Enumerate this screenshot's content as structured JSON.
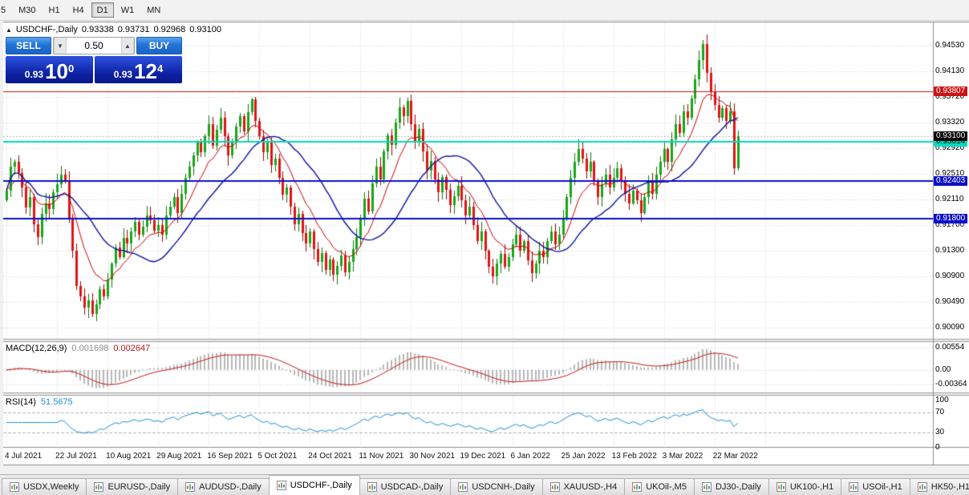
{
  "toolbar": {
    "timeframes": [
      {
        "label": "5",
        "active": false
      },
      {
        "label": "M30",
        "active": false
      },
      {
        "label": "H1",
        "active": false
      },
      {
        "label": "H4",
        "active": false
      },
      {
        "label": "D1",
        "active": true
      },
      {
        "label": "W1",
        "active": false
      },
      {
        "label": "MN",
        "active": false
      }
    ]
  },
  "chart": {
    "title": {
      "marker": "▲",
      "symbol": "USDCHF-,Daily",
      "open": "0.93338",
      "high": "0.93731",
      "low": "0.92968",
      "close": "0.93100"
    },
    "price_axis_labels": [
      "0.94530",
      "0.94130",
      "0.93720",
      "0.93320",
      "0.92920",
      "0.92510",
      "0.92110",
      "0.91700",
      "0.91300",
      "0.90900",
      "0.90490",
      "0.90090"
    ],
    "levels": [
      {
        "label": "0.93807",
        "value": 0.93807,
        "color": "#cc1414",
        "text_color": "#ffffff",
        "thickness": 1
      },
      {
        "label": "0.93014",
        "value": 0.93014,
        "color": "#00dcbe",
        "text_color": "#000000",
        "thickness": 2
      },
      {
        "label": "0.92403",
        "value": 0.92403,
        "color": "#0a10c8",
        "text_color": "#ffffff",
        "thickness": 2
      },
      {
        "label": "0.91800",
        "value": 0.918,
        "color": "#0a10c8",
        "text_color": "#ffffff",
        "thickness": 2
      }
    ],
    "current_price": {
      "label": "0.93100",
      "value": 0.931,
      "bg": "#000000",
      "text_color": "#ffffff"
    },
    "date_labels": [
      "4 Jul 2021",
      "22 Jul 2021",
      "10 Aug 2021",
      "29 Aug 2021",
      "16 Sep 2021",
      "5 Oct 2021",
      "24 Oct 2021",
      "11 Nov 2021",
      "30 Nov 2021",
      "19 Dec 2021",
      "6 Jan 2022",
      "25 Jan 2022",
      "13 Feb 2022",
      "3 Mar 2022",
      "22 Mar 2022"
    ]
  },
  "trade": {
    "sell_label": "SELL",
    "buy_label": "BUY",
    "volume": "0.50",
    "bid_small": "0.93",
    "bid_big": "10",
    "bid_sup": "0",
    "ask_small": "0.93",
    "ask_big": "12",
    "ask_sup": "4"
  },
  "macd": {
    "name": "MACD(12,26,9)",
    "value_main": "0.001698",
    "value_signal": "0.002647",
    "axis_labels": [
      {
        "text": "0.00554",
        "value": 0.00554
      },
      {
        "text": "0.00",
        "value": 0
      },
      {
        "text": "-0.00364",
        "value": -0.00364
      }
    ]
  },
  "rsi": {
    "name": "RSI(14)",
    "value": "51.5675",
    "axis_labels": [
      {
        "text": "100",
        "value": 100
      },
      {
        "text": "70",
        "value": 70
      },
      {
        "text": "30",
        "value": 30
      },
      {
        "text": "0",
        "value": 0
      }
    ],
    "levels": [
      70,
      30
    ]
  },
  "tabs": [
    {
      "label": "USDX,Weekly",
      "active": false
    },
    {
      "label": "EURUSD-,Daily",
      "active": false
    },
    {
      "label": "AUDUSD-,Daily",
      "active": false
    },
    {
      "label": "USDCHF-,Daily",
      "active": true
    },
    {
      "label": "USDCAD-,Daily",
      "active": false
    },
    {
      "label": "USDCNH-,Daily",
      "active": false
    },
    {
      "label": "XAUUSD-,H4",
      "active": false
    },
    {
      "label": "UKOil-,M5",
      "active": false
    },
    {
      "label": "DJ30-,Daily",
      "active": false
    },
    {
      "label": "UK100-,H1",
      "active": false
    },
    {
      "label": "USOil-,H1",
      "active": false
    },
    {
      "label": "HK50-,H1",
      "active": false
    }
  ],
  "chart_data": {
    "type": "candlestick",
    "symbol": "USDCHF",
    "timeframe": "Daily",
    "price_range": [
      0.8993,
      0.949
    ],
    "first_open": 0.921,
    "closes": [
      0.9225,
      0.9262,
      0.927,
      0.9252,
      0.923,
      0.9198,
      0.9215,
      0.9172,
      0.9152,
      0.9188,
      0.9205,
      0.9196,
      0.9222,
      0.9235,
      0.925,
      0.924,
      0.918,
      0.913,
      0.9075,
      0.9058,
      0.904,
      0.9052,
      0.903,
      0.9045,
      0.907,
      0.9058,
      0.9085,
      0.911,
      0.9135,
      0.912,
      0.915,
      0.9142,
      0.916,
      0.9175,
      0.9155,
      0.9168,
      0.9185,
      0.9178,
      0.9162,
      0.917,
      0.9155,
      0.9185,
      0.92,
      0.9215,
      0.919,
      0.922,
      0.9245,
      0.9262,
      0.928,
      0.93,
      0.9285,
      0.931,
      0.933,
      0.9295,
      0.932,
      0.934,
      0.931,
      0.928,
      0.93,
      0.9325,
      0.9342,
      0.9318,
      0.9348,
      0.9368,
      0.9335,
      0.931,
      0.9285,
      0.93,
      0.9265,
      0.9275,
      0.9245,
      0.9218,
      0.923,
      0.92,
      0.9172,
      0.9188,
      0.9158,
      0.9142,
      0.916,
      0.9132,
      0.9112,
      0.9126,
      0.91,
      0.9116,
      0.9092,
      0.9106,
      0.9122,
      0.9096,
      0.9112,
      0.9132,
      0.9152,
      0.9182,
      0.9212,
      0.9192,
      0.9236,
      0.9262,
      0.9242,
      0.9286,
      0.9312,
      0.9296,
      0.9332,
      0.9356,
      0.9342,
      0.9366,
      0.933,
      0.9302,
      0.9322,
      0.9286,
      0.9256,
      0.9272,
      0.9242,
      0.9222,
      0.9246,
      0.9226,
      0.9202,
      0.9216,
      0.9232,
      0.921,
      0.9185,
      0.92,
      0.917,
      0.9145,
      0.916,
      0.913,
      0.9105,
      0.909,
      0.911,
      0.9125,
      0.9105,
      0.912,
      0.914,
      0.9155,
      0.913,
      0.9145,
      0.9115,
      0.9095,
      0.911,
      0.913,
      0.912,
      0.9145,
      0.916,
      0.914,
      0.9155,
      0.918,
      0.9215,
      0.9245,
      0.927,
      0.929,
      0.9275,
      0.9255,
      0.927,
      0.924,
      0.9215,
      0.9235,
      0.925,
      0.923,
      0.9245,
      0.926,
      0.924,
      0.922,
      0.9205,
      0.9225,
      0.921,
      0.919,
      0.9215,
      0.924,
      0.922,
      0.925,
      0.927,
      0.929,
      0.927,
      0.9305,
      0.933,
      0.9315,
      0.935,
      0.934,
      0.937,
      0.94,
      0.943,
      0.9455,
      0.941,
      0.938,
      0.936,
      0.934,
      0.9355,
      0.9335,
      0.935,
      0.926,
      0.931
    ],
    "indicators": {
      "macd": [
        12,
        26,
        9
      ],
      "rsi": 14,
      "ma_fast": 10,
      "ma_slow": 22
    },
    "colors": {
      "up": "#17a617",
      "up_border": "#0b7a0b",
      "down": "#e01414",
      "down_border": "#9c0606",
      "ma_fast": "#d40000",
      "ma_slow": "#0a12a0",
      "grid": "#d8d8d8",
      "macd_hist": "#b8b8b8",
      "macd_signal": "#c81414",
      "rsi_line": "#1e8fd5",
      "rsi_level": "#b4b4b4"
    }
  }
}
